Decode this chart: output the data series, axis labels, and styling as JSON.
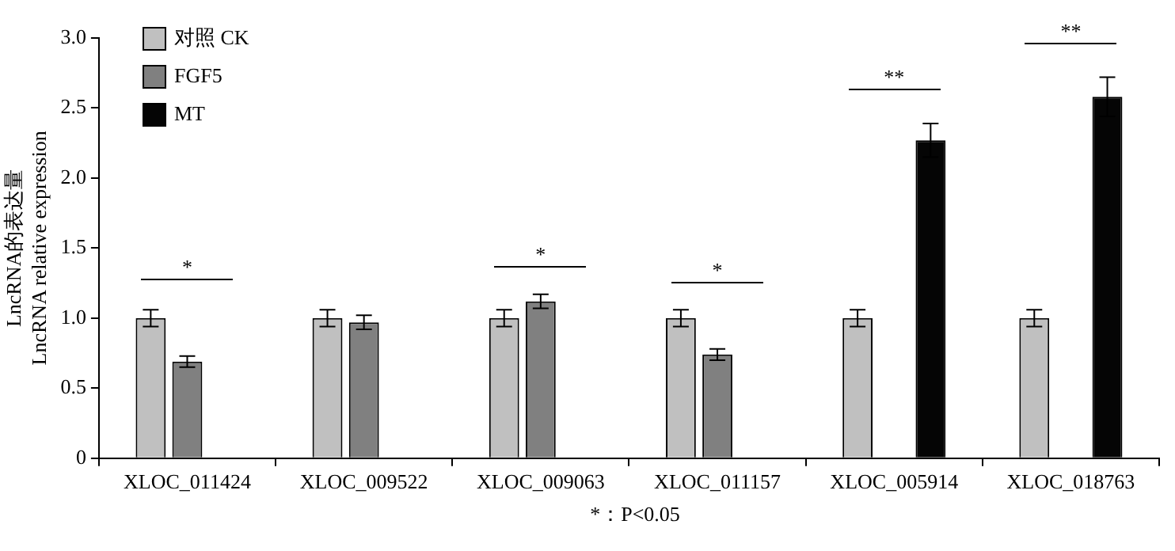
{
  "chart_data": {
    "type": "bar",
    "ylabel": "LncRNA的表达量\nLncRNA relative expression",
    "categories": [
      "XLOC_011424",
      "XLOC_009522",
      "XLOC_009063",
      "XLOC_011157",
      "XLOC_005914",
      "XLOC_018763"
    ],
    "series": [
      {
        "name": "对照 CK",
        "color": "#c0c0c0",
        "values": [
          1.0,
          1.0,
          1.0,
          1.0,
          1.0,
          1.0
        ],
        "errors": [
          0.06,
          0.06,
          0.06,
          0.06,
          0.06,
          0.06
        ]
      },
      {
        "name": "FGF5",
        "color": "#808080",
        "values": [
          0.69,
          0.97,
          1.12,
          0.74,
          null,
          null
        ],
        "errors": [
          0.04,
          0.05,
          0.05,
          0.04,
          null,
          null
        ]
      },
      {
        "name": "MT",
        "color": "#050505",
        "values": [
          null,
          null,
          null,
          null,
          2.27,
          2.58
        ],
        "errors": [
          null,
          null,
          null,
          null,
          0.12,
          0.14
        ]
      }
    ],
    "ylim": [
      0,
      3
    ],
    "yticks": [
      0,
      {
        "value": 0.5,
        "label": "0.5"
      },
      {
        "value": 1,
        "label": "1.0"
      },
      {
        "value": 1.5,
        "label": "1.5"
      },
      {
        "value": 2,
        "label": "2.0"
      },
      {
        "value": 2.5,
        "label": "2.5"
      },
      {
        "value": 3,
        "label": "3.0"
      }
    ],
    "grid": false,
    "legend": "top left",
    "annotations": [
      "*",
      "*",
      "*",
      "**",
      "**",
      "*：P<0.05"
    ]
  }
}
